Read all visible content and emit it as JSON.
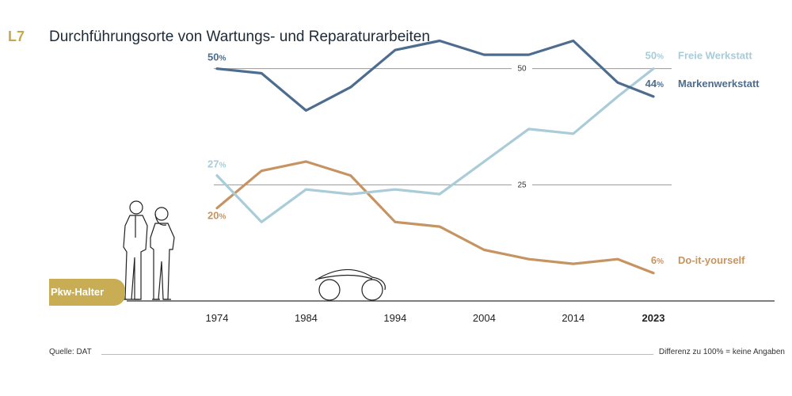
{
  "header": {
    "code": "L7",
    "title": "Durchführungsorte von Wartungs- und Reparaturarbeiten"
  },
  "footer": {
    "source": "Quelle: DAT",
    "note": "Differenz zu 100% = keine Angaben"
  },
  "illustration": {
    "label": "Pkw-Halter"
  },
  "colors": {
    "markenwerkstatt": "#4d6d8f",
    "freie_werkstatt": "#a9ccd8",
    "diy": "#c69462",
    "gridline": "#9a9a9a",
    "accent": "#c8ad55"
  },
  "chart_data": {
    "type": "line",
    "title": "Durchführungsorte von Wartungs- und Reparaturarbeiten",
    "x": [
      1974,
      1979,
      1984,
      1989,
      1994,
      1999,
      2004,
      2009,
      2014,
      2019,
      2023
    ],
    "x_ticks": [
      1974,
      1984,
      1994,
      2004,
      2014,
      2023
    ],
    "x_tick_labels": [
      "1974",
      "1984",
      "1994",
      "2004",
      "2014",
      "2023"
    ],
    "reference_lines": [
      25,
      50
    ],
    "reference_labels": [
      "25",
      "50"
    ],
    "ylim": [
      0,
      60
    ],
    "grid": false,
    "legend": "right, at line ends",
    "series": [
      {
        "name": "Markenwerkstatt",
        "values": [
          50,
          49,
          41,
          46,
          54,
          56,
          53,
          53,
          56,
          47,
          44
        ],
        "start_label": "50",
        "end_label": "44",
        "label_unit": "%"
      },
      {
        "name": "Freie Werkstatt",
        "values": [
          27,
          17,
          24,
          23,
          24,
          23,
          30,
          37,
          36,
          44,
          50
        ],
        "start_label": "27",
        "end_label": "50",
        "label_unit": "%"
      },
      {
        "name": "Do-it-yourself",
        "values": [
          20,
          28,
          30,
          27,
          17,
          16,
          11,
          9,
          8,
          9,
          6
        ],
        "start_label": "20",
        "end_label": "6",
        "label_unit": "%"
      }
    ]
  }
}
